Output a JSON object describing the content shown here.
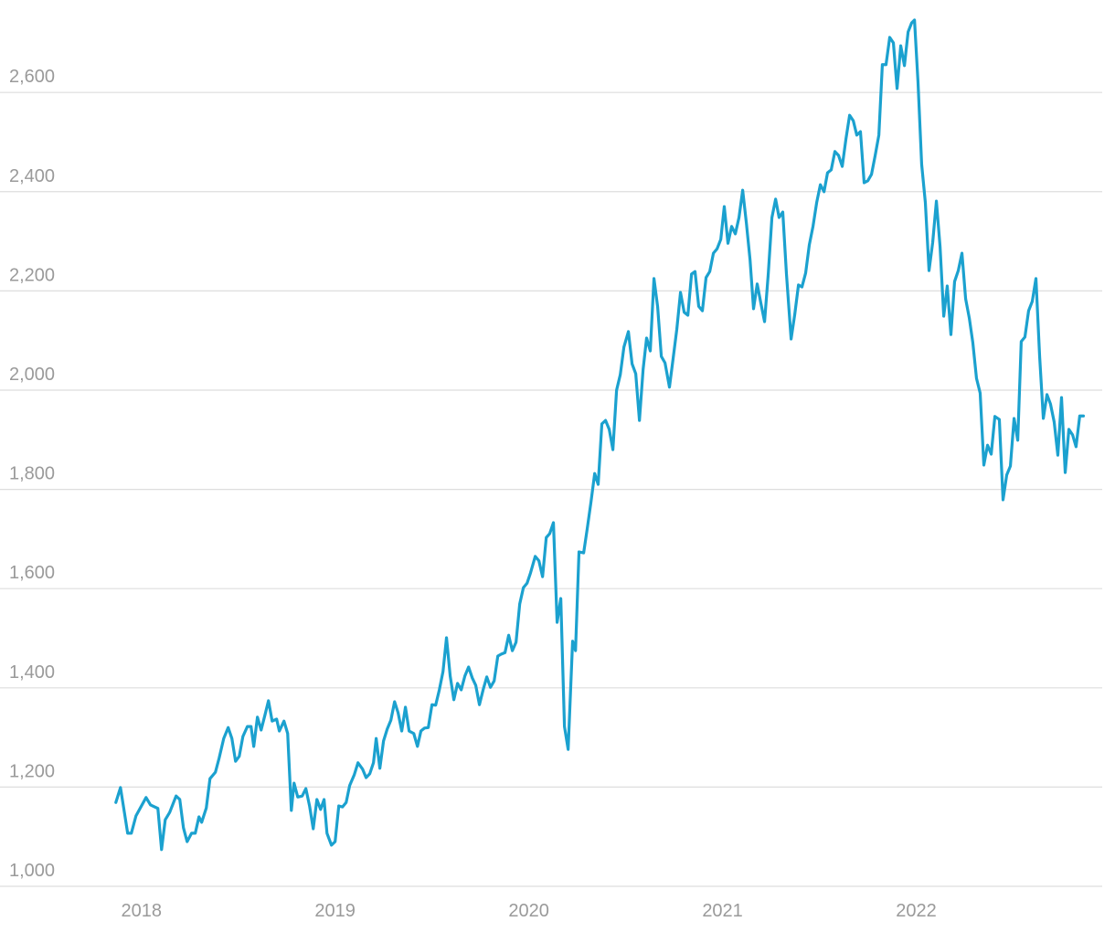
{
  "chart_data": {
    "type": "line",
    "x": [
      2017.868,
      2017.892,
      2017.929,
      2017.948,
      2017.972,
      2018.024,
      2018.047,
      2018.085,
      2018.104,
      2018.123,
      2018.146,
      2018.179,
      2018.198,
      2018.217,
      2018.236,
      2018.259,
      2018.278,
      2018.297,
      2018.311,
      2018.335,
      2018.354,
      2018.382,
      2018.401,
      2018.425,
      2018.448,
      2018.467,
      2018.486,
      2018.505,
      2018.524,
      2018.547,
      2018.566,
      2018.58,
      2018.599,
      2018.618,
      2018.637,
      2018.656,
      2018.675,
      2018.698,
      2018.712,
      2018.736,
      2018.755,
      2018.774,
      2018.788,
      2018.807,
      2018.83,
      2018.849,
      2018.868,
      2018.887,
      2018.906,
      2018.925,
      2018.943,
      2018.958,
      2018.981,
      2019.0,
      2019.019,
      2019.038,
      2019.057,
      2019.075,
      2019.099,
      2019.118,
      2019.142,
      2019.16,
      2019.179,
      2019.198,
      2019.212,
      2019.231,
      2019.25,
      2019.269,
      2019.288,
      2019.307,
      2019.325,
      2019.344,
      2019.363,
      2019.382,
      2019.406,
      2019.425,
      2019.443,
      2019.462,
      2019.481,
      2019.5,
      2019.519,
      2019.538,
      2019.557,
      2019.575,
      2019.594,
      2019.613,
      2019.632,
      2019.651,
      2019.67,
      2019.689,
      2019.708,
      2019.726,
      2019.745,
      2019.764,
      2019.783,
      2019.802,
      2019.821,
      2019.84,
      2019.858,
      2019.877,
      2019.896,
      2019.915,
      2019.934,
      2019.953,
      2019.972,
      2019.991,
      2020.009,
      2020.033,
      2020.052,
      2020.071,
      2020.09,
      2020.108,
      2020.127,
      2020.146,
      2020.165,
      2020.184,
      2020.203,
      2020.226,
      2020.241,
      2020.259,
      2020.283,
      2020.302,
      2020.321,
      2020.34,
      2020.358,
      2020.377,
      2020.396,
      2020.415,
      2020.434,
      2020.453,
      2020.472,
      2020.491,
      2020.514,
      2020.533,
      2020.552,
      2020.571,
      2020.59,
      2020.608,
      2020.627,
      2020.646,
      2020.665,
      2020.684,
      2020.703,
      2020.726,
      2020.745,
      2020.764,
      2020.783,
      2020.802,
      2020.821,
      2020.84,
      2020.858,
      2020.877,
      2020.896,
      2020.915,
      2020.934,
      2020.953,
      2020.972,
      2020.991,
      2021.009,
      2021.028,
      2021.047,
      2021.066,
      2021.085,
      2021.104,
      2021.123,
      2021.142,
      2021.16,
      2021.179,
      2021.198,
      2021.217,
      2021.236,
      2021.255,
      2021.274,
      2021.292,
      2021.311,
      2021.33,
      2021.354,
      2021.373,
      2021.392,
      2021.41,
      2021.429,
      2021.448,
      2021.467,
      2021.486,
      2021.505,
      2021.524,
      2021.542,
      2021.561,
      2021.58,
      2021.599,
      2021.618,
      2021.637,
      2021.656,
      2021.675,
      2021.693,
      2021.712,
      2021.731,
      2021.75,
      2021.769,
      2021.788,
      2021.807,
      2021.825,
      2021.844,
      2021.863,
      2021.882,
      2021.901,
      2021.92,
      2021.939,
      2021.958,
      2021.976,
      2021.991,
      2022.009,
      2022.028,
      2022.047,
      2022.066,
      2022.085,
      2022.104,
      2022.123,
      2022.142,
      2022.16,
      2022.179,
      2022.198,
      2022.217,
      2022.236,
      2022.255,
      2022.274,
      2022.292,
      2022.311,
      2022.33,
      2022.349,
      2022.368,
      2022.387,
      2022.406,
      2022.429,
      2022.448,
      2022.467,
      2022.486,
      2022.505,
      2022.524,
      2022.542,
      2022.561,
      2022.58,
      2022.599,
      2022.618,
      2022.637,
      2022.656,
      2022.675,
      2022.693,
      2022.712,
      2022.731,
      2022.75,
      2022.769,
      2022.788,
      2022.807,
      2022.825,
      2022.844,
      2022.863
    ],
    "series": [
      {
        "color": "#1ba1cf",
        "values": [
          1169,
          1199,
          1107,
          1107,
          1142,
          1179,
          1164,
          1157,
          1074,
          1134,
          1149,
          1182,
          1175,
          1118,
          1090,
          1107,
          1107,
          1140,
          1129,
          1158,
          1217,
          1230,
          1258,
          1298,
          1320,
          1298,
          1252,
          1262,
          1302,
          1322,
          1322,
          1282,
          1341,
          1315,
          1344,
          1374,
          1333,
          1337,
          1313,
          1333,
          1308,
          1153,
          1208,
          1180,
          1182,
          1197,
          1162,
          1116,
          1175,
          1155,
          1175,
          1107,
          1083,
          1090,
          1162,
          1160,
          1169,
          1203,
          1225,
          1249,
          1236,
          1219,
          1227,
          1249,
          1298,
          1238,
          1293,
          1317,
          1335,
          1372,
          1350,
          1313,
          1361,
          1313,
          1308,
          1282,
          1313,
          1319,
          1320,
          1366,
          1365,
          1396,
          1433,
          1501,
          1424,
          1376,
          1409,
          1396,
          1424,
          1442,
          1420,
          1405,
          1366,
          1396,
          1422,
          1401,
          1414,
          1464,
          1468,
          1471,
          1506,
          1475,
          1492,
          1569,
          1602,
          1611,
          1632,
          1665,
          1656,
          1624,
          1703,
          1711,
          1733,
          1532,
          1580,
          1322,
          1276,
          1494,
          1475,
          1674,
          1672,
          1722,
          1775,
          1832,
          1810,
          1932,
          1939,
          1921,
          1880,
          2000,
          2031,
          2087,
          2118,
          2053,
          2033,
          1939,
          2042,
          2105,
          2079,
          2225,
          2168,
          2068,
          2055,
          2006,
          2064,
          2123,
          2197,
          2157,
          2151,
          2234,
          2239,
          2169,
          2160,
          2227,
          2239,
          2276,
          2285,
          2304,
          2370,
          2296,
          2330,
          2315,
          2348,
          2403,
          2337,
          2263,
          2164,
          2214,
          2175,
          2138,
          2234,
          2348,
          2385,
          2348,
          2359,
          2234,
          2103,
          2153,
          2212,
          2208,
          2236,
          2293,
          2330,
          2378,
          2414,
          2400,
          2438,
          2444,
          2481,
          2473,
          2451,
          2506,
          2554,
          2543,
          2514,
          2521,
          2418,
          2422,
          2435,
          2473,
          2514,
          2656,
          2656,
          2711,
          2700,
          2608,
          2694,
          2654,
          2722,
          2740,
          2746,
          2622,
          2455,
          2378,
          2241,
          2298,
          2381,
          2289,
          2149,
          2210,
          2112,
          2219,
          2241,
          2276,
          2184,
          2145,
          2096,
          2024,
          1994,
          1849,
          1889,
          1871,
          1947,
          1941,
          1779,
          1829,
          1847,
          1943,
          1899,
          2098,
          2107,
          2160,
          2179,
          2225,
          2068,
          1943,
          1991,
          1972,
          1936,
          1869,
          1985,
          1834,
          1921,
          1910,
          1886,
          1948,
          1948
        ]
      }
    ],
    "xlim": [
      2017.27,
      2022.96
    ],
    "xticks": [
      2018,
      2019,
      2020,
      2021,
      2022
    ],
    "ylim": [
      1000,
      2760
    ],
    "yticks": [
      {
        "value": 1000,
        "label": "1,000"
      },
      {
        "value": 1200,
        "label": "1,200"
      },
      {
        "value": 1400,
        "label": "1,400"
      },
      {
        "value": 1600,
        "label": "1,600"
      },
      {
        "value": 1800,
        "label": "1,800"
      },
      {
        "value": 2000,
        "label": "2,000"
      },
      {
        "value": 2200,
        "label": "2,200"
      },
      {
        "value": 2400,
        "label": "2,400"
      },
      {
        "value": 2600,
        "label": "2,600"
      }
    ],
    "grid": true
  }
}
